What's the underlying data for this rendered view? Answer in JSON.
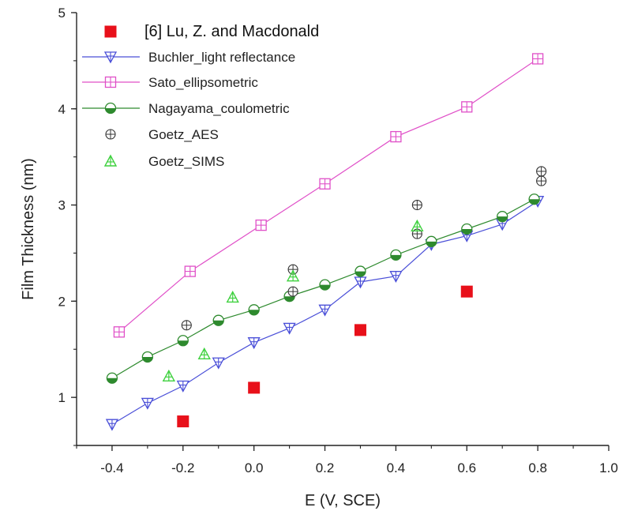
{
  "chart_data": {
    "type": "scatter",
    "xlabel": "E (V, SCE)",
    "ylabel": "Film Thickness (nm)",
    "xlim": [
      -0.5,
      1.0
    ],
    "ylim": [
      0.5,
      5.0
    ],
    "x_ticks": [
      "-0.4",
      "-0.2",
      "0.0",
      "0.2",
      "0.4",
      "0.6",
      "0.8",
      "1.0"
    ],
    "y_ticks": [
      "1",
      "2",
      "3",
      "4",
      "5"
    ],
    "grid": false,
    "legend_position": "top-left",
    "series": [
      {
        "name": "[6] Lu, Z. and Macdonald",
        "marker": "square-filled",
        "color": "#e8101a",
        "line": false,
        "points": [
          [
            -0.2,
            0.75
          ],
          [
            0.0,
            1.1
          ],
          [
            0.3,
            1.7
          ],
          [
            0.6,
            2.1
          ]
        ]
      },
      {
        "name": "Buchler_light reflectance",
        "marker": "triangle-down-cross",
        "color": "#4a4fd8",
        "line": true,
        "points": [
          [
            -0.4,
            0.72
          ],
          [
            -0.3,
            0.94
          ],
          [
            -0.2,
            1.12
          ],
          [
            -0.1,
            1.36
          ],
          [
            0.0,
            1.57
          ],
          [
            0.1,
            1.72
          ],
          [
            0.2,
            1.91
          ],
          [
            0.3,
            2.2
          ],
          [
            0.4,
            2.26
          ],
          [
            0.5,
            2.59
          ],
          [
            0.6,
            2.68
          ],
          [
            0.7,
            2.8
          ],
          [
            0.8,
            3.04
          ]
        ]
      },
      {
        "name": "Sato_ellipsometric",
        "marker": "square-cross",
        "color": "#e050c8",
        "line": true,
        "points": [
          [
            -0.38,
            1.68
          ],
          [
            -0.18,
            2.31
          ],
          [
            0.02,
            2.79
          ],
          [
            0.2,
            3.22
          ],
          [
            0.4,
            3.71
          ],
          [
            0.6,
            4.02
          ],
          [
            0.8,
            4.52
          ]
        ]
      },
      {
        "name": "Nagayama_coulometric",
        "marker": "circle-half",
        "color": "#2e8a2e",
        "line": true,
        "points": [
          [
            -0.4,
            1.2
          ],
          [
            -0.3,
            1.42
          ],
          [
            -0.2,
            1.59
          ],
          [
            -0.1,
            1.8
          ],
          [
            0.0,
            1.91
          ],
          [
            0.1,
            2.05
          ],
          [
            0.2,
            2.17
          ],
          [
            0.3,
            2.31
          ],
          [
            0.4,
            2.48
          ],
          [
            0.5,
            2.62
          ],
          [
            0.6,
            2.75
          ],
          [
            0.7,
            2.88
          ],
          [
            0.79,
            3.06
          ]
        ]
      },
      {
        "name": "Goetz_AES",
        "marker": "circle-cross",
        "color": "#333333",
        "line": false,
        "points": [
          [
            -0.19,
            1.75
          ],
          [
            0.11,
            2.33
          ],
          [
            0.11,
            2.1
          ],
          [
            0.46,
            3.0
          ],
          [
            0.46,
            2.7
          ],
          [
            0.81,
            3.35
          ],
          [
            0.81,
            3.25
          ]
        ]
      },
      {
        "name": "Goetz_SIMS",
        "marker": "triangle-up-cross",
        "color": "#3fd13f",
        "line": false,
        "points": [
          [
            -0.24,
            1.22
          ],
          [
            -0.14,
            1.45
          ],
          [
            -0.06,
            2.04
          ],
          [
            0.11,
            2.26
          ],
          [
            0.46,
            2.78
          ]
        ]
      }
    ]
  }
}
